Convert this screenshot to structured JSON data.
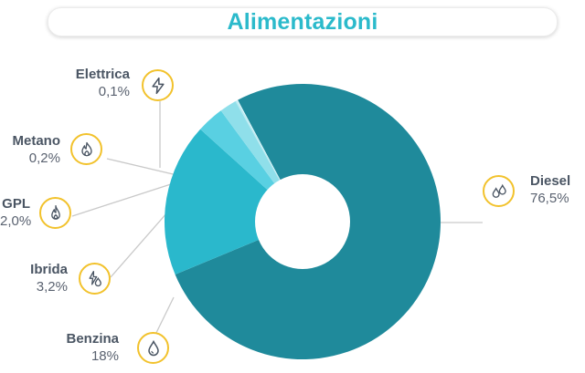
{
  "title": "Alimentazioni",
  "colors": {
    "title": "#2bbacb",
    "icon_border": "#f2c22c",
    "label_name": "#4a5563",
    "leader": "#c9c9c9"
  },
  "chart_data": {
    "type": "pie",
    "variant": "donut",
    "title": "Alimentazioni",
    "slices": [
      {
        "name": "Diesel",
        "label": "76,5%",
        "value": 76.5,
        "color": "#1f8a9b",
        "icon": "water-drops-icon"
      },
      {
        "name": "Benzina",
        "label": "18%",
        "value": 18.0,
        "color": "#2ab8cc",
        "icon": "drop-icon"
      },
      {
        "name": "Ibrida",
        "label": "3,2%",
        "value": 3.2,
        "color": "#59d0e2",
        "icon": "bolt-drop-icon"
      },
      {
        "name": "GPL",
        "label": "2,0%",
        "value": 2.0,
        "color": "#8fdfea",
        "icon": "gas-flame-icon"
      },
      {
        "name": "Metano",
        "label": "0,2%",
        "value": 0.2,
        "color": "#b9ebf2",
        "icon": "flame-icon"
      },
      {
        "name": "Elettrica",
        "label": "0,1%",
        "value": 0.1,
        "color": "#dcf5f9",
        "icon": "lightning-icon"
      }
    ]
  }
}
